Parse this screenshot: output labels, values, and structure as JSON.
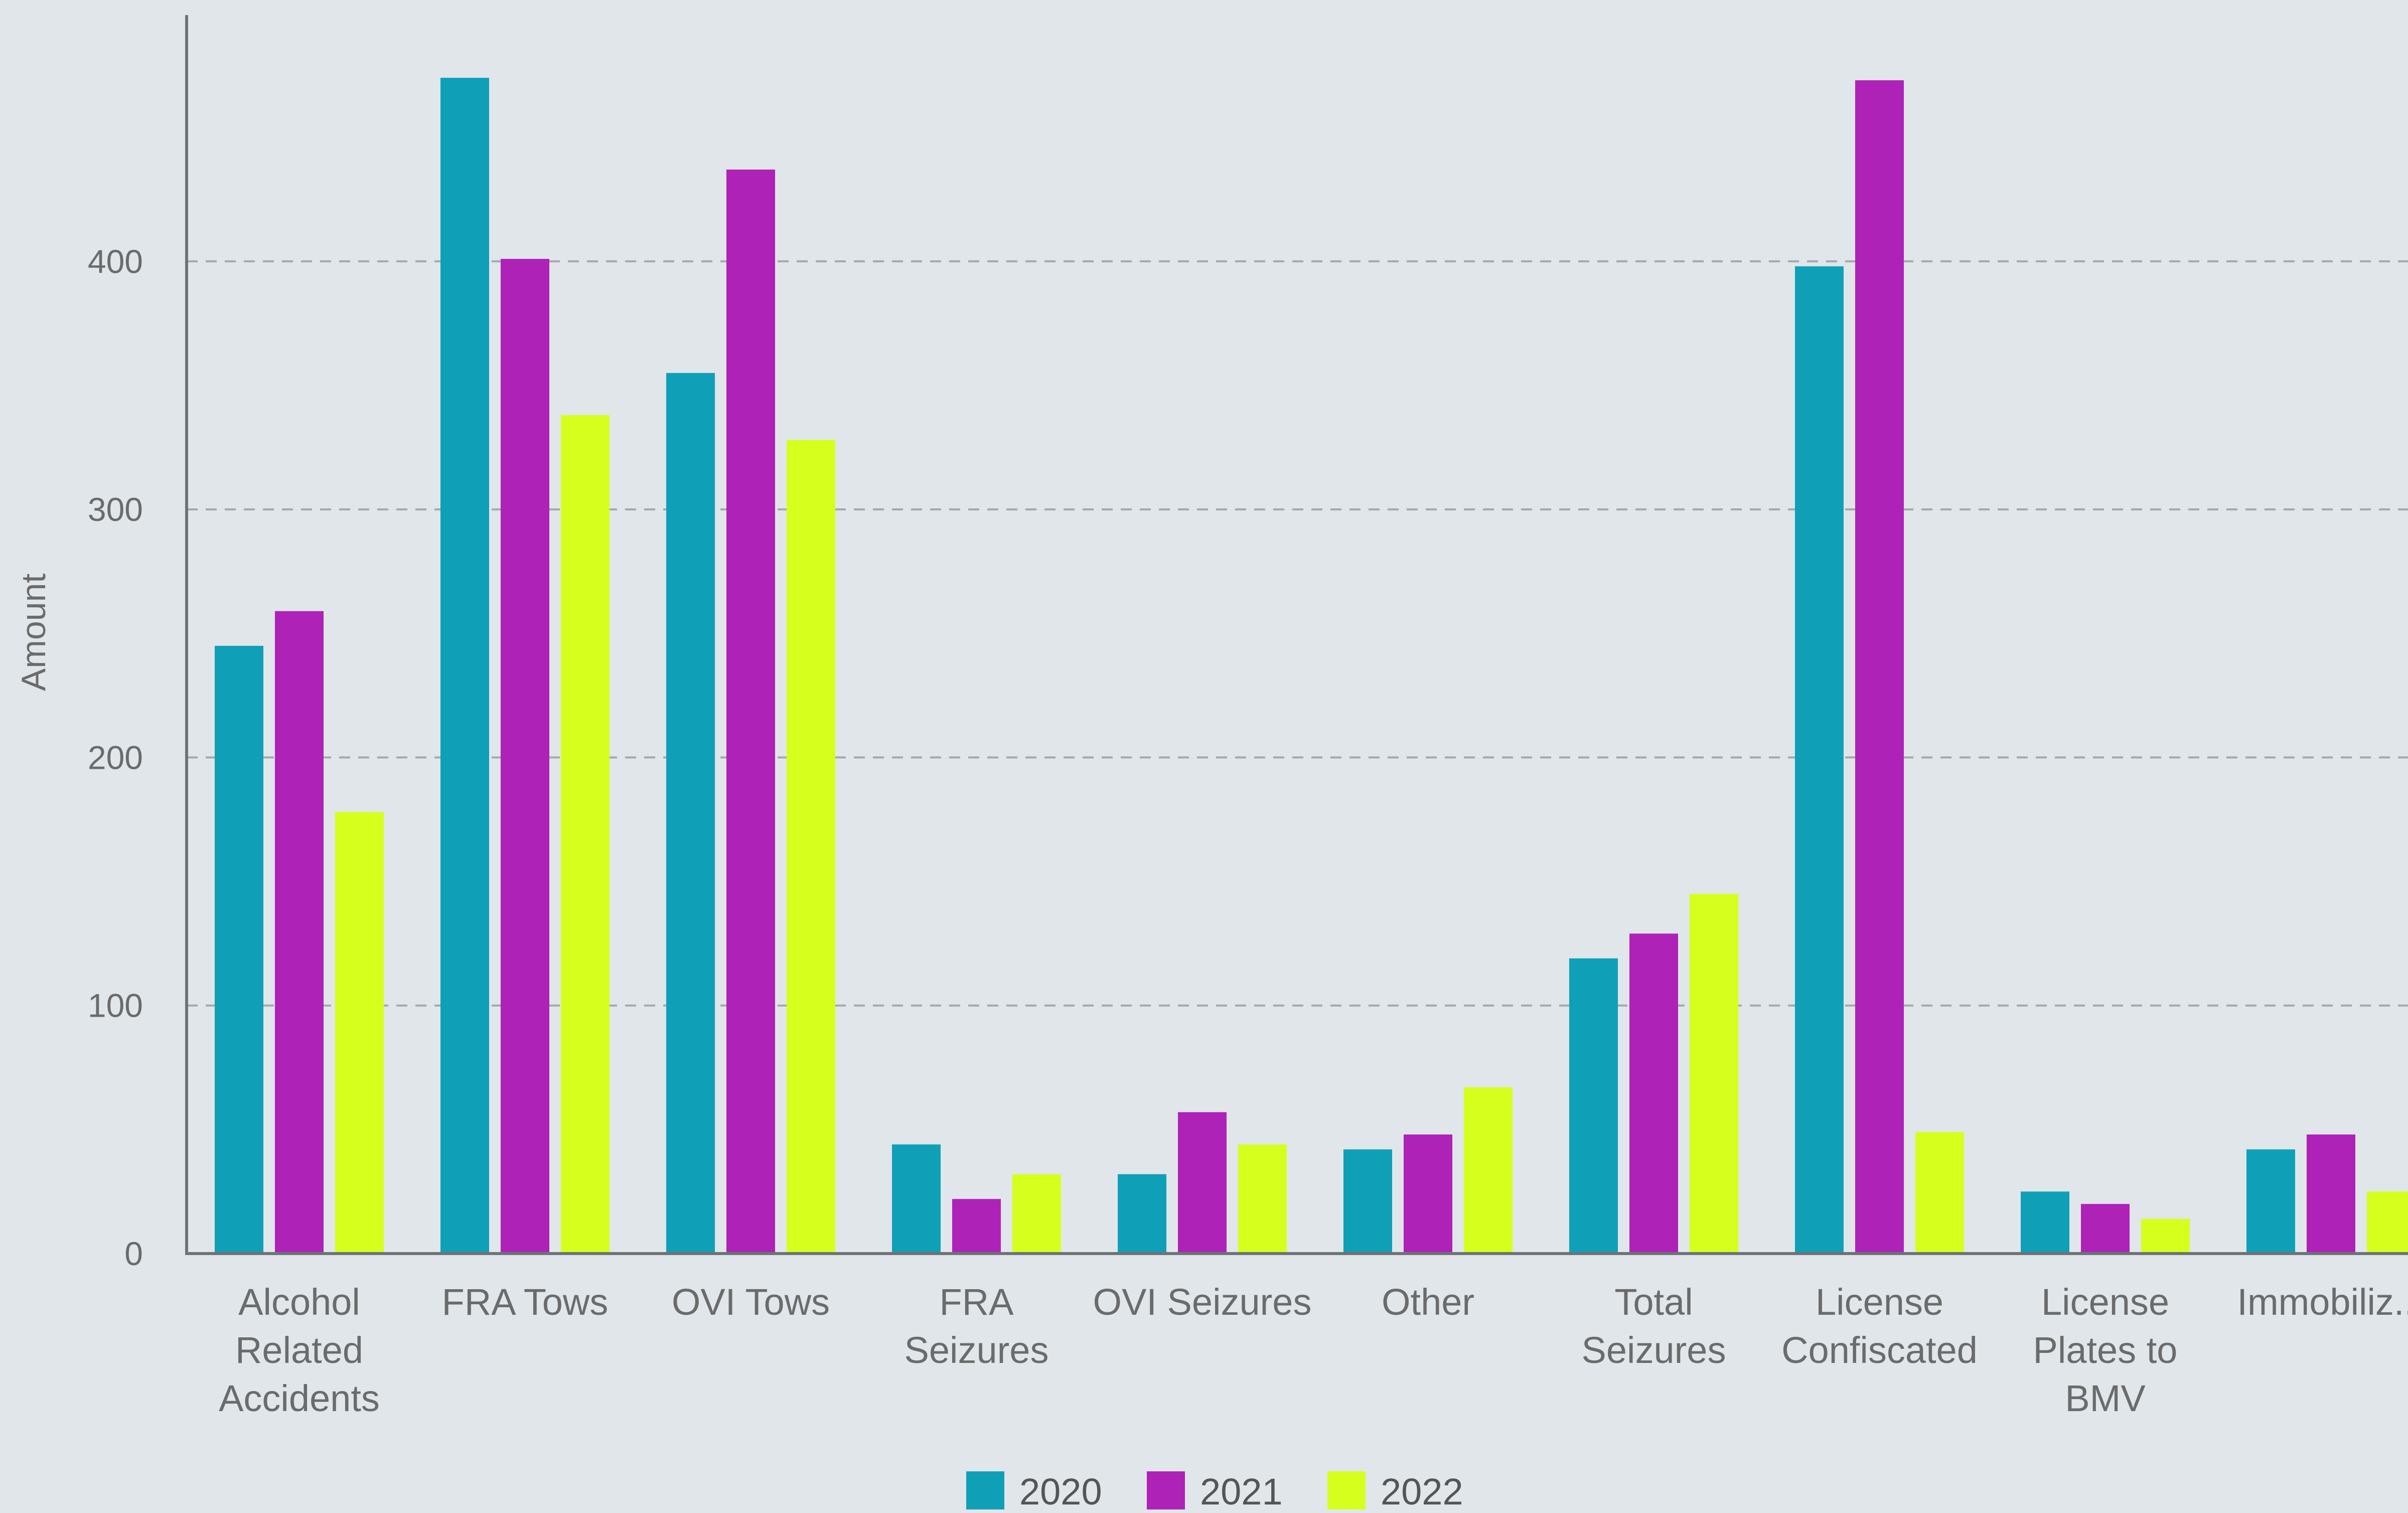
{
  "chart_data": {
    "type": "bar",
    "categories": [
      "Alcohol Related Accidents",
      "FRA Tows",
      "OVI Tows",
      "FRA Seizures",
      "OVI Seizures",
      "Other",
      "Total Seizures",
      "License Confiscated",
      "License Plates to BMV",
      "Immobiliz..."
    ],
    "category_lines": [
      [
        "Alcohol",
        "Related",
        "Accidents"
      ],
      [
        "FRA Tows"
      ],
      [
        "OVI Tows"
      ],
      [
        "FRA",
        "Seizures"
      ],
      [
        "OVI Seizures"
      ],
      [
        "Other"
      ],
      [
        "Total",
        "Seizures"
      ],
      [
        "License",
        "Confiscated"
      ],
      [
        "License",
        "Plates to",
        "BMV"
      ],
      [
        "Immobiliz..."
      ]
    ],
    "series": [
      {
        "name": "2020",
        "color": "#0fa0b8",
        "values": [
          245,
          474,
          355,
          44,
          32,
          42,
          119,
          398,
          25,
          42
        ]
      },
      {
        "name": "2021",
        "color": "#ae22b8",
        "values": [
          259,
          401,
          437,
          22,
          57,
          48,
          129,
          473,
          20,
          48
        ]
      },
      {
        "name": "2022",
        "color": "#d6ff1e",
        "values": [
          178,
          338,
          328,
          32,
          44,
          67,
          145,
          49,
          14,
          25
        ]
      }
    ],
    "ylabel": "Amount",
    "xlabel": "",
    "ylim": [
      0,
      500
    ],
    "yticks": [
      0,
      100,
      200,
      300,
      400
    ],
    "grid": true,
    "legend_position": "bottom-center"
  }
}
